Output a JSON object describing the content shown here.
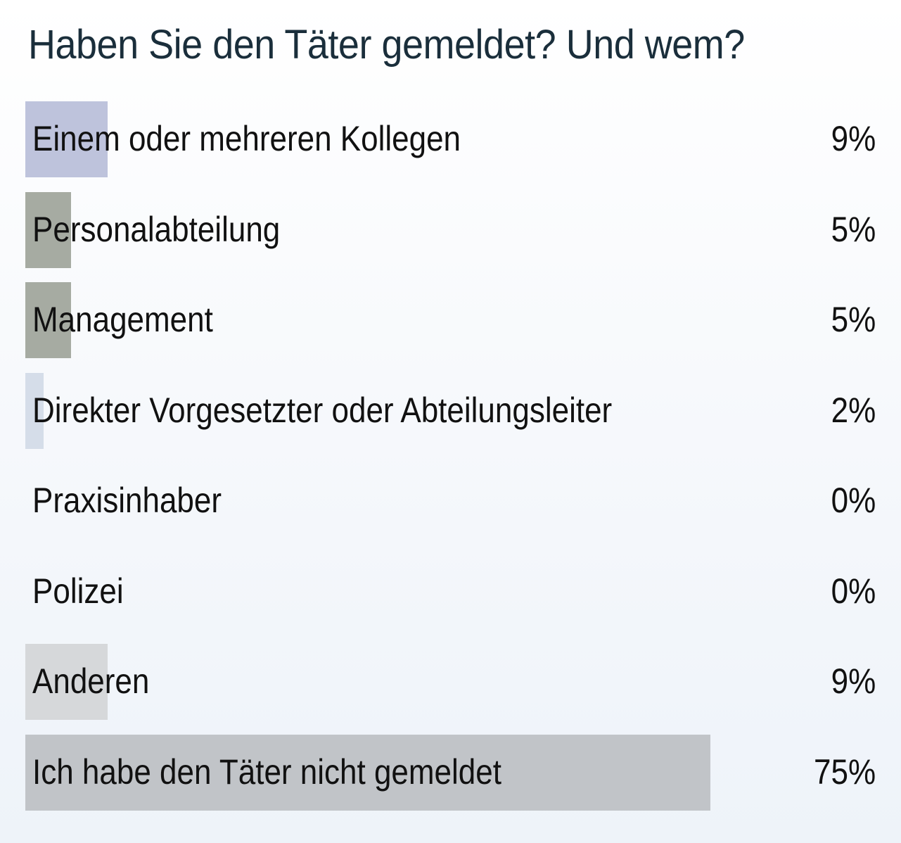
{
  "chart_data": {
    "type": "bar",
    "orientation": "horizontal",
    "title": "Haben Sie den Täter gemeldet? Und wem?",
    "unit": "%",
    "categories": [
      "Einem oder mehreren Kollegen",
      "Personalabteilung",
      "Management",
      "Direkter Vorgesetzter oder Abteilungsleiter",
      "Praxisinhaber",
      "Polizei",
      "Anderen",
      "Ich habe den Täter nicht gemeldet"
    ],
    "values": [
      9,
      5,
      5,
      2,
      0,
      0,
      9,
      75
    ],
    "value_labels": [
      "9%",
      "5%",
      "5%",
      "2%",
      "0%",
      "0%",
      "9%",
      "75%"
    ],
    "bar_colors": [
      "#bec3dc",
      "#a6aba2",
      "#a6aba2",
      "#d5dde9",
      "#c6c6c6",
      "#c6c6c6",
      "#d6d8da",
      "#c1c4c8"
    ],
    "xlim": [
      0,
      100
    ],
    "grid": false,
    "legend": "none"
  }
}
